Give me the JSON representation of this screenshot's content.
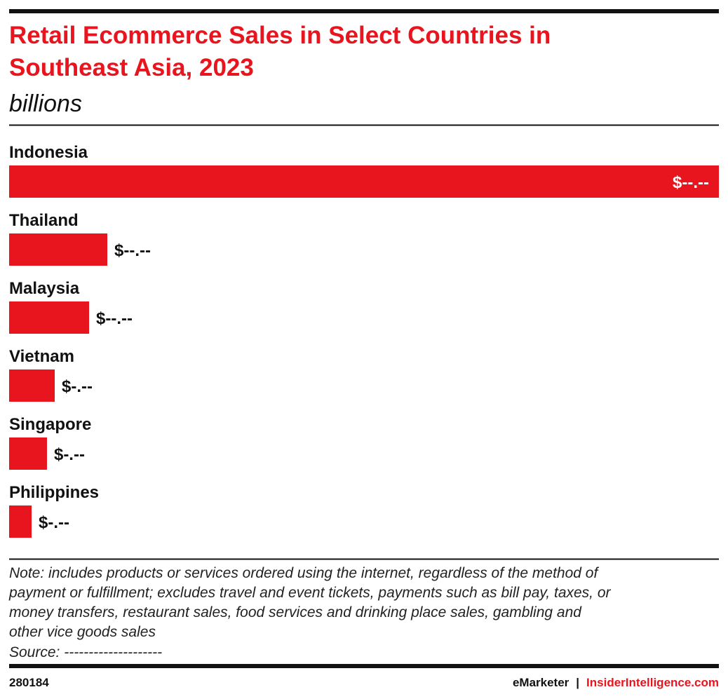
{
  "chart_data": {
    "type": "bar",
    "orientation": "horizontal",
    "title": [
      "Retail Ecommerce Sales in Select Countries in",
      "Southeast Asia, 2023"
    ],
    "subtitle": "billions",
    "categories": [
      "Indonesia",
      "Thailand",
      "Malaysia",
      "Vietnam",
      "Singapore",
      "Philippines"
    ],
    "values": [
      90,
      12.45,
      10.14,
      5.78,
      4.8,
      2.85
    ],
    "value_labels": [
      "$--.--",
      "$--.--",
      "$--.--",
      "$-.--",
      "$-.--",
      "$-.--"
    ],
    "color": "#e8141e",
    "note": [
      "Note: includes products or services ordered using the internet, regardless of the method of",
      "payment or fulfillment; excludes travel and event tickets, payments such as bill pay, taxes, or",
      "money transfers, restaurant sales, food services and drinking place sales, gambling and",
      "other vice goods sales"
    ],
    "source": "Source: --------------------"
  },
  "footer": {
    "id": "280184",
    "brand": "eMarketer",
    "separator": "|",
    "site": "InsiderIntelligence.com"
  }
}
